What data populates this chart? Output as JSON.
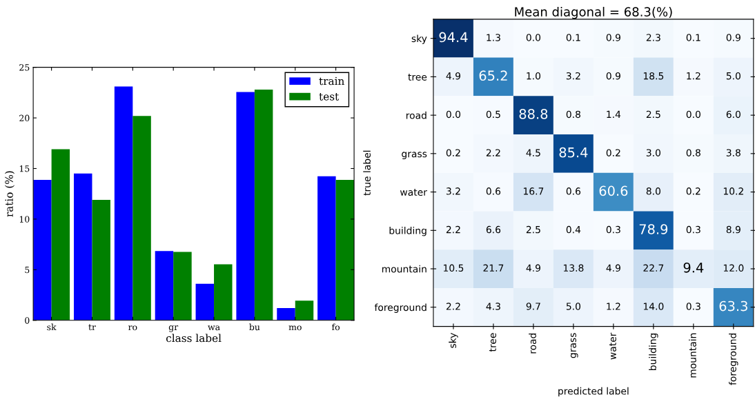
{
  "chart_data": [
    {
      "type": "bar",
      "xlabel": "class label",
      "ylabel": "ratio (%)",
      "categories": [
        "sk",
        "tr",
        "ro",
        "gr",
        "wa",
        "bu",
        "mo",
        "fo"
      ],
      "series": [
        {
          "name": "train",
          "color": "#0000ff",
          "values": [
            13.87,
            14.5,
            23.1,
            6.84,
            3.6,
            22.56,
            1.2,
            14.24
          ]
        },
        {
          "name": "test",
          "color": "#008000",
          "values": [
            16.9,
            11.9,
            20.2,
            6.75,
            5.53,
            22.8,
            1.94,
            13.87
          ]
        }
      ],
      "ylim": [
        0,
        25
      ],
      "yticks": [
        0,
        5,
        10,
        15,
        20,
        25
      ],
      "legend": "top right"
    },
    {
      "type": "heatmap",
      "title": "Mean diagonal = 68.3(%)",
      "xlabel": "predicted label",
      "ylabel": "true label",
      "cell_labels": [
        [
          "94.4",
          "1.3",
          "0.0",
          "0.1",
          "0.9",
          "2.3",
          "0.1",
          "0.9"
        ],
        [
          "4.9",
          "65.2",
          "1.0",
          "3.2",
          "0.9",
          "18.5",
          "1.2",
          "5.0"
        ],
        [
          "0.0",
          "0.5",
          "88.8",
          "0.8",
          "1.4",
          "2.5",
          "0.0",
          "6.0"
        ],
        [
          "0.2",
          "2.2",
          "4.5",
          "85.4",
          "0.2",
          "3.0",
          "0.8",
          "3.8"
        ],
        [
          "3.2",
          "0.6",
          "16.7",
          "0.6",
          "60.6",
          "8.0",
          "0.2",
          "10.2"
        ],
        [
          "2.2",
          "6.6",
          "2.5",
          "0.4",
          "0.3",
          "78.9",
          "0.3",
          "8.9"
        ],
        [
          "10.5",
          "21.7",
          "4.9",
          "13.8",
          "4.9",
          "22.7",
          "9.4",
          "12.0"
        ],
        [
          "2.2",
          "4.3",
          "9.7",
          "5.0",
          "1.2",
          "14.0",
          "0.3",
          "63.3"
        ]
      ],
      "categories": [
        "sky",
        "tree",
        "road",
        "grass",
        "water",
        "building",
        "mountain",
        "foreground"
      ],
      "y_categories": [
        "sky",
        "tree",
        "road",
        "grass",
        "water",
        "building",
        "mountain",
        "foreground"
      ],
      "cells": [
        [
          94.4,
          1.3,
          0.0,
          0.1,
          0.9,
          2.3,
          0.1,
          0.9
        ],
        [
          4.9,
          65.2,
          1.0,
          3.2,
          0.9,
          18.5,
          1.2,
          5.0
        ],
        [
          0.0,
          0.5,
          88.8,
          0.8,
          1.4,
          2.5,
          0.0,
          6.0
        ],
        [
          0.2,
          2.2,
          4.5,
          85.4,
          0.2,
          3.0,
          0.8,
          3.8
        ],
        [
          3.2,
          0.6,
          16.7,
          0.6,
          60.6,
          8.0,
          0.2,
          10.2
        ],
        [
          2.2,
          6.6,
          2.5,
          0.4,
          0.3,
          78.9,
          0.3,
          8.9
        ],
        [
          10.5,
          21.7,
          4.9,
          13.8,
          4.9,
          22.7,
          9.4,
          12.0
        ],
        [
          2.2,
          4.3,
          9.7,
          5.0,
          1.2,
          14.0,
          0.3,
          63.3
        ]
      ]
    }
  ]
}
